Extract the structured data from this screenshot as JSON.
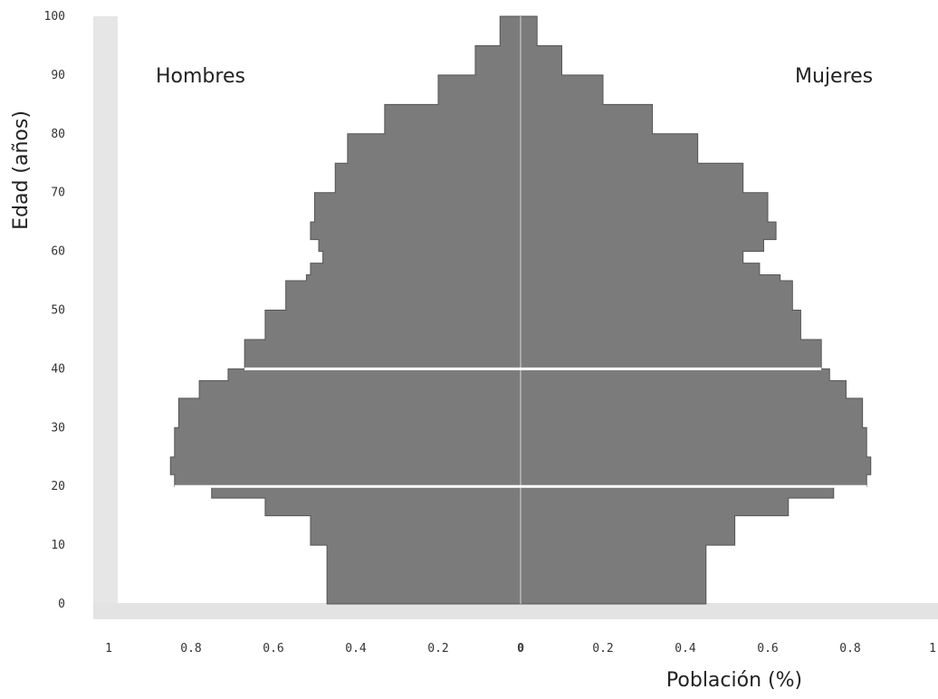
{
  "chart_data": {
    "type": "area",
    "title": "",
    "xlabel": "Población (%)",
    "ylabel": "Edad (años)",
    "left_label": "Hombres",
    "right_label": "Mujeres",
    "xlim": [
      -1,
      1
    ],
    "ylim": [
      0,
      100
    ],
    "x_ticks": [
      {
        "value": -1,
        "label": "1"
      },
      {
        "value": -0.8,
        "label": "0.8"
      },
      {
        "value": -0.6,
        "label": "0.6"
      },
      {
        "value": -0.4,
        "label": "0.4"
      },
      {
        "value": -0.2,
        "label": "0.2"
      },
      {
        "value": 0,
        "label": "0"
      },
      {
        "value": 0.2,
        "label": "0.2"
      },
      {
        "value": 0.4,
        "label": "0.4"
      },
      {
        "value": 0.6,
        "label": "0.6"
      },
      {
        "value": 0.8,
        "label": "0.8"
      },
      {
        "value": 1,
        "label": "1"
      }
    ],
    "y_ticks": [
      {
        "value": 0,
        "label": "0"
      },
      {
        "value": 10,
        "label": "10"
      },
      {
        "value": 20,
        "label": "20"
      },
      {
        "value": 30,
        "label": "30"
      },
      {
        "value": 40,
        "label": "40"
      },
      {
        "value": 50,
        "label": "50"
      },
      {
        "value": 60,
        "label": "60"
      },
      {
        "value": 70,
        "label": "70"
      },
      {
        "value": 80,
        "label": "80"
      },
      {
        "value": 90,
        "label": "90"
      },
      {
        "value": 100,
        "label": "100"
      }
    ],
    "reference_lines": [
      20,
      40
    ],
    "ages": [
      0,
      5,
      10,
      15,
      18,
      20,
      22,
      25,
      30,
      35,
      38,
      40,
      45,
      50,
      55,
      56,
      58,
      60,
      62,
      65,
      70,
      75,
      80,
      85,
      90,
      95,
      100
    ],
    "series": [
      {
        "name": "Hombres",
        "values": [
          0.47,
          0.47,
          0.51,
          0.62,
          0.75,
          0.84,
          0.85,
          0.84,
          0.83,
          0.78,
          0.71,
          0.67,
          0.62,
          0.57,
          0.52,
          0.51,
          0.48,
          0.49,
          0.51,
          0.5,
          0.45,
          0.42,
          0.33,
          0.2,
          0.11,
          0.05,
          0.02
        ]
      },
      {
        "name": "Mujeres",
        "values": [
          0.45,
          0.45,
          0.52,
          0.65,
          0.76,
          0.84,
          0.85,
          0.84,
          0.83,
          0.79,
          0.75,
          0.73,
          0.68,
          0.66,
          0.63,
          0.58,
          0.54,
          0.59,
          0.62,
          0.6,
          0.54,
          0.43,
          0.32,
          0.2,
          0.1,
          0.04,
          0.01
        ]
      }
    ],
    "fill_color": "#7b7b7b",
    "line_color": "#ffffff",
    "grid": false
  }
}
